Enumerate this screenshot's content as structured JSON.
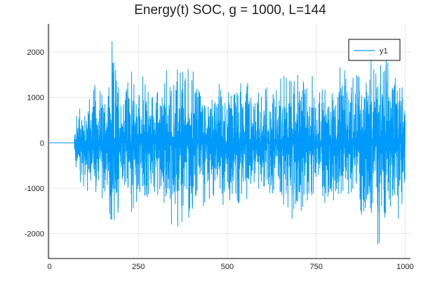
{
  "chart_data": {
    "type": "line",
    "title": "Energy(t) SOC, g = 1000, L=144",
    "xlabel": "",
    "ylabel": "",
    "xlim": [
      -3,
      1015
    ],
    "ylim": [
      -2550,
      2620
    ],
    "x_ticks": [
      0,
      250,
      500,
      750,
      1000
    ],
    "x_tick_labels": [
      "0",
      "250",
      "500",
      "750",
      "1000"
    ],
    "y_ticks": [
      -2000,
      -1000,
      0,
      1000,
      2000
    ],
    "y_tick_labels": [
      "-2000",
      "-1000",
      "0",
      "1000",
      "2000"
    ],
    "grid": true,
    "legend_position": "top-right",
    "series": [
      {
        "name": "y1",
        "color": "#009AFA",
        "description_of_shape": "flat at 0 until t≈70, then dense oscillation spanning roughly ±2300 until t=1000",
        "x_start": 0,
        "x_end": 1000,
        "quiet_until": 70,
        "envelope": [
          [
            70,
            300
          ],
          [
            80,
            1100
          ],
          [
            100,
            1200
          ],
          [
            130,
            1500
          ],
          [
            160,
            1500
          ],
          [
            175,
            2350
          ],
          [
            200,
            1700
          ],
          [
            250,
            1700
          ],
          [
            300,
            1300
          ],
          [
            350,
            2100
          ],
          [
            400,
            1900
          ],
          [
            450,
            1400
          ],
          [
            500,
            1500
          ],
          [
            550,
            1500
          ],
          [
            600,
            1400
          ],
          [
            650,
            1700
          ],
          [
            700,
            1900
          ],
          [
            750,
            1500
          ],
          [
            800,
            1600
          ],
          [
            850,
            1900
          ],
          [
            900,
            2000
          ],
          [
            920,
            2450
          ],
          [
            950,
            2200
          ],
          [
            1000,
            1900
          ]
        ]
      }
    ]
  }
}
